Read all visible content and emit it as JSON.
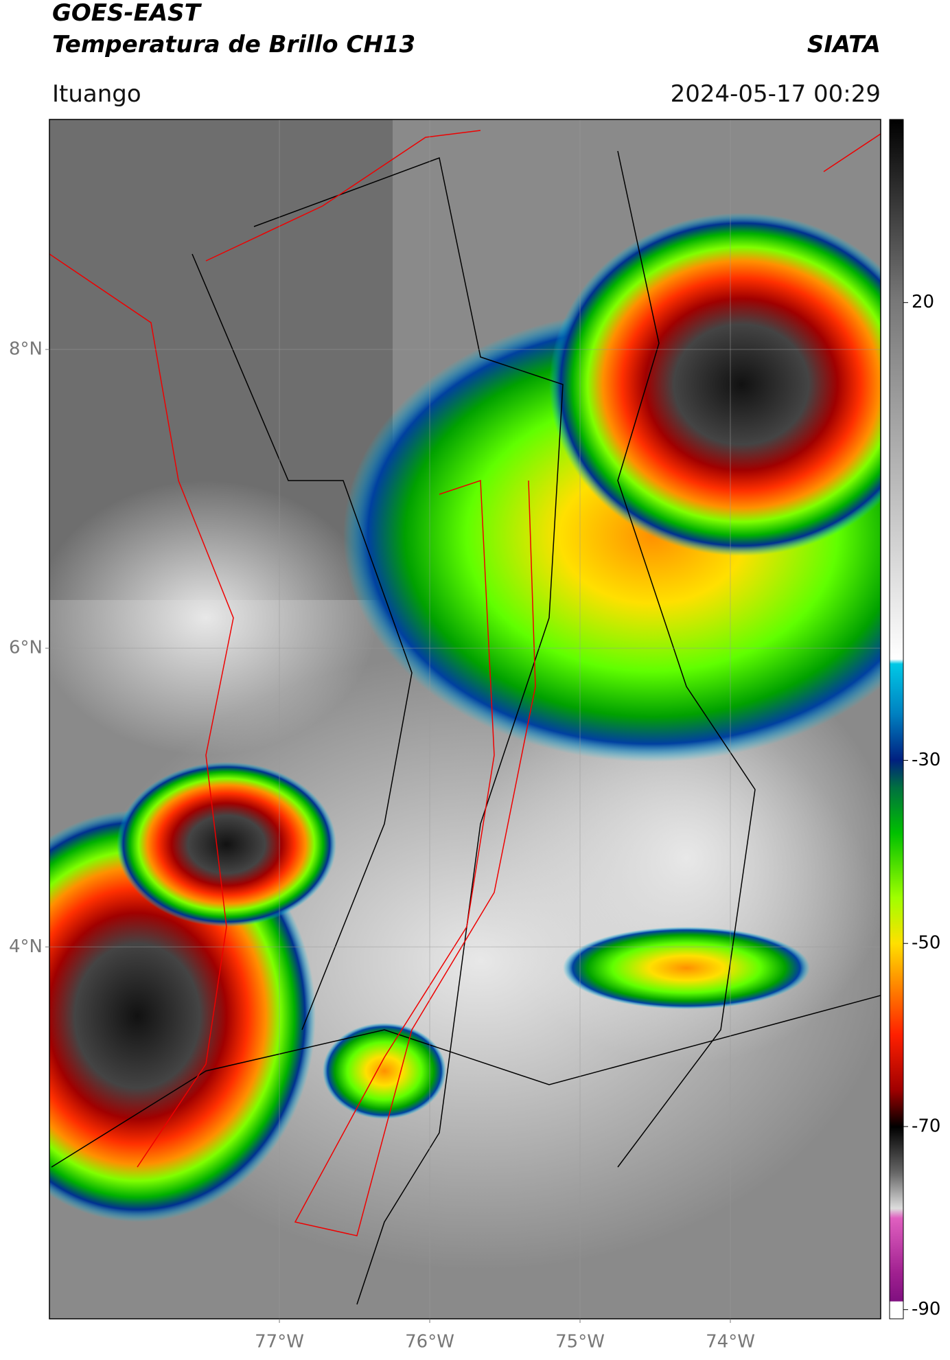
{
  "header": {
    "satellite": "GOES-EAST",
    "product": "Temperatura de Brillo CH13",
    "agency": "SIATA",
    "location": "Ituango",
    "timestamp": "2024-05-17 00:29"
  },
  "map": {
    "xlim": [
      -78.53,
      -73.0
    ],
    "ylim": [
      1.51,
      9.54
    ],
    "xticks": [
      {
        "value": -77,
        "label": "77°W"
      },
      {
        "value": -76,
        "label": "76°W"
      },
      {
        "value": -75,
        "label": "75°W"
      },
      {
        "value": -74,
        "label": "74°W"
      }
    ],
    "yticks": [
      {
        "value": 4,
        "label": "4°N"
      },
      {
        "value": 6,
        "label": "6°N"
      },
      {
        "value": 8,
        "label": "8°N"
      }
    ],
    "grid": true
  },
  "colorbar": {
    "lim": [
      -91,
      40
    ],
    "ticks": [
      -90,
      -70,
      -50,
      -30,
      20
    ]
  }
}
